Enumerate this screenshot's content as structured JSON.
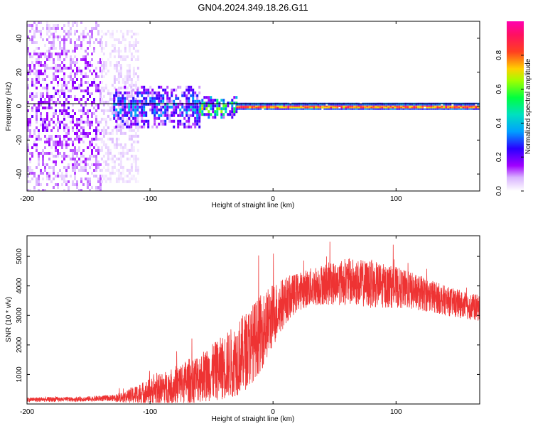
{
  "title": "GN04.2024.349.18.26.G11",
  "colors": {
    "snr_line": "#ee3333",
    "frame": "#000000",
    "colormap": [
      "#ffffff",
      "#b000ff",
      "#3000ff",
      "#00c0ff",
      "#00ff60",
      "#c0ff00",
      "#ff3030",
      "#ff00c0"
    ]
  },
  "chart_data": [
    {
      "type": "heatmap",
      "title": "",
      "xlabel": "Height of straight line (km)",
      "ylabel": "Frequency (Hz)",
      "xlim": [
        -200,
        168
      ],
      "ylim": [
        -50,
        50
      ],
      "xticks": [
        -200,
        -100,
        0,
        100
      ],
      "yticks": [
        -40,
        -20,
        0,
        20,
        40
      ],
      "xtick_labels": [
        "-200",
        "-100",
        "0",
        "100"
      ],
      "ytick_labels": [
        "-40",
        "-20",
        "0",
        "20",
        "40"
      ],
      "colorbar": {
        "label": "Normalized spectral amplitude",
        "range": [
          0,
          1
        ],
        "ticks": [
          0.0,
          0.2,
          0.4,
          0.6,
          0.8
        ],
        "tick_labels": [
          "0.0",
          "0.2",
          "0.4",
          "0.6",
          "0.8"
        ]
      },
      "zones": [
        {
          "x_range": [
            -200,
            -140
          ],
          "freq_spread_hz": 50,
          "typical_amplitude": 0.12
        },
        {
          "x_range": [
            -140,
            -110
          ],
          "freq_spread_hz": 45,
          "typical_amplitude": 0.05
        },
        {
          "x_range": [
            -130,
            -60
          ],
          "freq_spread_hz": 12,
          "typical_amplitude": 0.25
        },
        {
          "x_range": [
            -60,
            -30
          ],
          "freq_spread_hz": 6,
          "typical_amplitude": 0.45
        },
        {
          "x_range": [
            -30,
            168
          ],
          "freq_spread_hz": 2,
          "typical_amplitude": 0.9
        }
      ],
      "reference_line_hz": 0
    },
    {
      "type": "line",
      "title": "",
      "xlabel": "Height of straight line (km)",
      "ylabel": "SNR (10 * v/v)",
      "xlim": [
        -200,
        168
      ],
      "ylim": [
        0,
        5700
      ],
      "xticks": [
        -200,
        -100,
        0,
        100
      ],
      "yticks": [
        1000,
        2000,
        3000,
        4000,
        5000
      ],
      "xtick_labels": [
        "-200",
        "-100",
        "0",
        "100"
      ],
      "ytick_labels": [
        "1000",
        "2000",
        "3000",
        "4000",
        "5000"
      ],
      "envelope": {
        "x": [
          -200,
          -160,
          -130,
          -120,
          -110,
          -100,
          -90,
          -80,
          -70,
          -60,
          -50,
          -40,
          -30,
          -20,
          -10,
          0,
          10,
          20,
          30,
          40,
          50,
          60,
          70,
          80,
          90,
          100,
          110,
          120,
          130,
          140,
          150,
          160,
          168
        ],
        "center": [
          150,
          160,
          200,
          240,
          330,
          420,
          520,
          630,
          760,
          900,
          1050,
          1250,
          1500,
          1900,
          2400,
          3000,
          3500,
          3800,
          3950,
          4050,
          4100,
          4150,
          4100,
          4050,
          4000,
          3950,
          3850,
          3750,
          3650,
          3500,
          3400,
          3300,
          3250
        ],
        "spread": [
          80,
          80,
          110,
          200,
          350,
          450,
          550,
          650,
          750,
          850,
          950,
          1100,
          1250,
          1350,
          1300,
          1100,
          800,
          650,
          650,
          700,
          750,
          800,
          800,
          800,
          750,
          700,
          650,
          600,
          550,
          500,
          480,
          450,
          450
        ]
      },
      "peak_max": 5600
    }
  ]
}
